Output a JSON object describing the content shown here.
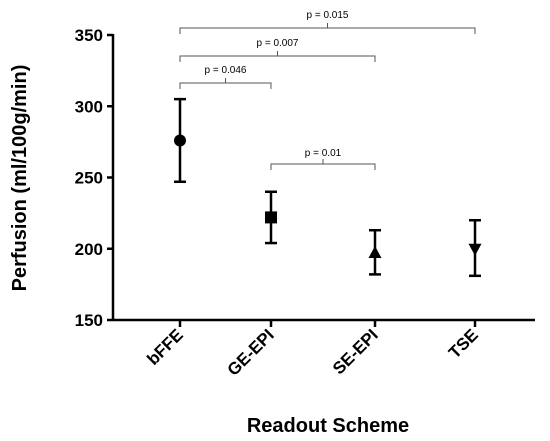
{
  "chart_data": {
    "type": "scatter",
    "title": "",
    "xlabel": "Readout Scheme",
    "ylabel": "Perfusion (ml/100g/min)",
    "ylim": [
      150,
      350
    ],
    "yticks": [
      150,
      200,
      250,
      300,
      350
    ],
    "categories": [
      "bFFE",
      "GE-EPI",
      "SE-EPI",
      "TSE"
    ],
    "series": [
      {
        "values": [
          276,
          222,
          197,
          200
        ],
        "error_low": [
          247,
          204,
          182,
          181
        ],
        "error_high": [
          305,
          240,
          213,
          220
        ],
        "markers": [
          "circle",
          "square",
          "triangle-up",
          "triangle-down"
        ]
      }
    ],
    "annotations": [
      {
        "from": "bFFE",
        "to": "TSE",
        "text": "p = 0.015"
      },
      {
        "from": "bFFE",
        "to": "SE-EPI",
        "text": "p = 0.007"
      },
      {
        "from": "bFFE",
        "to": "GE-EPI",
        "text": "p = 0.046"
      },
      {
        "from": "GE-EPI",
        "to": "SE-EPI",
        "text": "p = 0.01"
      }
    ],
    "grid": false,
    "colors": {
      "marker": "#000000",
      "bracket": "#555555"
    }
  }
}
